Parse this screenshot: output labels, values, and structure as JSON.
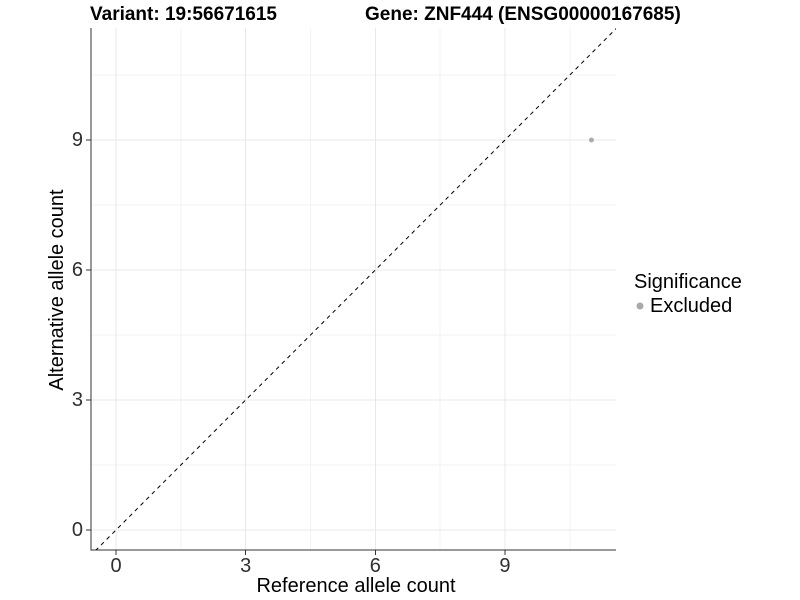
{
  "header": {
    "variant": "Variant: 19:56671615",
    "gene": "Gene: ZNF444 (ENSG00000167685)"
  },
  "chart_data": {
    "type": "scatter",
    "xlabel": "Reference allele count",
    "ylabel": "Alternative allele count",
    "x_ticks": [
      0,
      3,
      6,
      9
    ],
    "y_ticks": [
      0,
      3,
      6,
      9
    ],
    "x_minor_ticks": [
      1.5,
      4.5,
      7.5,
      10.5
    ],
    "y_minor_ticks": [
      1.5,
      4.5,
      7.5,
      10.5
    ],
    "xlim": [
      -0.58,
      11.59
    ],
    "ylim": [
      -0.46,
      11.59
    ],
    "grid": true,
    "legend_position": "right",
    "reference_line": {
      "equation": "y = x",
      "style": "dashed",
      "color": "#000000"
    },
    "series": [
      {
        "name": "Excluded",
        "color": "#adadad",
        "point_radius": 2.5,
        "points": [
          {
            "x": 11,
            "y": 9
          }
        ]
      }
    ],
    "legend": {
      "title": "Significance",
      "items": [
        {
          "label": "Excluded",
          "color": "#a9a9a9"
        }
      ]
    },
    "colors": {
      "grid_major": "#e8e8e8",
      "grid_minor": "#f3f3f3",
      "axis_line": "#333333",
      "tick_mark": "#333333",
      "tick_label": "#303030"
    }
  }
}
